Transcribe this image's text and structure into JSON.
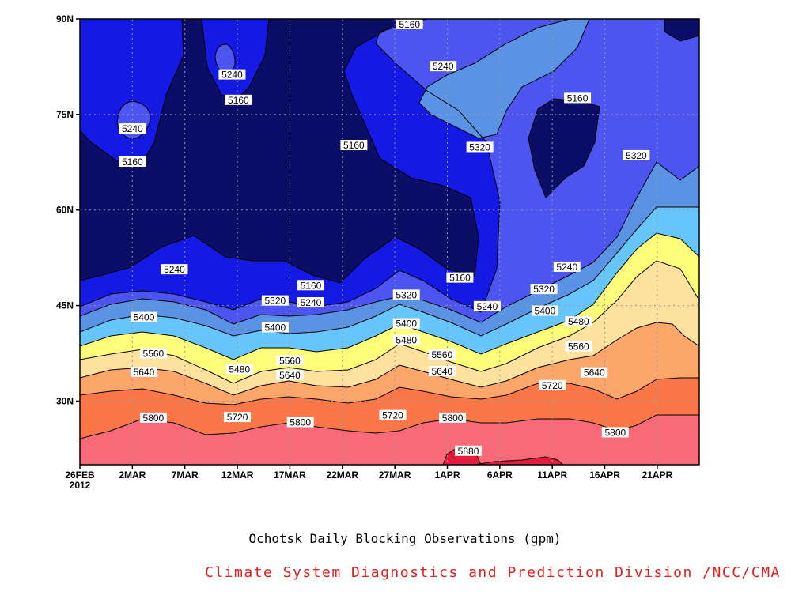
{
  "chart_data": {
    "type": "contour",
    "title": "Ochotsk Daily Blocking Observations (gpm)",
    "credit": "Climate System Diagnostics and Prediction Division /NCC/CMA",
    "xlabel": "",
    "ylabel": "",
    "x_ticks": [
      "26FEB",
      "2MAR",
      "7MAR",
      "12MAR",
      "17MAR",
      "22MAR",
      "27MAR",
      "1APR",
      "6APR",
      "11APR",
      "16APR",
      "21APR"
    ],
    "x_tick_year": "2012",
    "x_range_days": [
      0,
      59
    ],
    "y_ticks": [
      "30N",
      "45N",
      "60N",
      "75N",
      "90N"
    ],
    "y_range_deg": [
      20,
      90
    ],
    "grid": true,
    "levels": [
      5160,
      5240,
      5320,
      5400,
      5480,
      5560,
      5640,
      5720,
      5800,
      5880
    ],
    "level_colors": {
      "below_5160": "#0b0e66",
      "5160_5240": "#1419e4",
      "5240_5320": "#4c55f0",
      "5320_5400": "#5b93e4",
      "5400_5480": "#66c6fc",
      "5480_5560": "#fdfd7a",
      "5560_5640": "#fde19d",
      "5640_5720": "#fca66a",
      "5720_5800": "#fc7748",
      "5800_5880": "#f86a78",
      "above_5880": "#e41c3c"
    },
    "contour_labels": [
      {
        "value": "5160",
        "day": 31.4,
        "lat": 89.2
      },
      {
        "value": "5240",
        "day": 34.6,
        "lat": 82.6
      },
      {
        "value": "5240",
        "day": 14.5,
        "lat": 81.3
      },
      {
        "value": "5160",
        "day": 15.1,
        "lat": 77.3
      },
      {
        "value": "5240",
        "day": 5.0,
        "lat": 72.8
      },
      {
        "value": "5160",
        "day": 5.0,
        "lat": 67.6
      },
      {
        "value": "5160",
        "day": 26.1,
        "lat": 70.2
      },
      {
        "value": "5320",
        "day": 38.1,
        "lat": 69.9
      },
      {
        "value": "5160",
        "day": 47.4,
        "lat": 77.6
      },
      {
        "value": "5320",
        "day": 53.0,
        "lat": 68.6
      },
      {
        "value": "5240",
        "day": 9.0,
        "lat": 50.7
      },
      {
        "value": "5240",
        "day": 46.4,
        "lat": 51.1
      },
      {
        "value": "5160",
        "day": 22.0,
        "lat": 48.2
      },
      {
        "value": "5160",
        "day": 36.2,
        "lat": 49.4
      },
      {
        "value": "5320",
        "day": 44.2,
        "lat": 47.6
      },
      {
        "value": "5320",
        "day": 31.1,
        "lat": 46.7
      },
      {
        "value": "5320",
        "day": 18.6,
        "lat": 45.8
      },
      {
        "value": "5240",
        "day": 22.0,
        "lat": 45.5
      },
      {
        "value": "5240",
        "day": 38.8,
        "lat": 44.9
      },
      {
        "value": "5400",
        "day": 6.1,
        "lat": 43.2
      },
      {
        "value": "5400",
        "day": 44.3,
        "lat": 44.2
      },
      {
        "value": "5480",
        "day": 47.5,
        "lat": 42.5
      },
      {
        "value": "5400",
        "day": 18.6,
        "lat": 41.6
      },
      {
        "value": "5400",
        "day": 31.1,
        "lat": 42.2
      },
      {
        "value": "5480",
        "day": 31.1,
        "lat": 39.6
      },
      {
        "value": "5560",
        "day": 7.0,
        "lat": 37.5
      },
      {
        "value": "5560",
        "day": 47.5,
        "lat": 38.6
      },
      {
        "value": "5560",
        "day": 34.5,
        "lat": 37.3
      },
      {
        "value": "5560",
        "day": 20.0,
        "lat": 36.4
      },
      {
        "value": "5480",
        "day": 15.2,
        "lat": 35.0
      },
      {
        "value": "5640",
        "day": 6.1,
        "lat": 34.6
      },
      {
        "value": "5640",
        "day": 34.5,
        "lat": 34.7
      },
      {
        "value": "5640",
        "day": 20.0,
        "lat": 34.1
      },
      {
        "value": "5640",
        "day": 49.0,
        "lat": 34.5
      },
      {
        "value": "5720",
        "day": 45.0,
        "lat": 32.5
      },
      {
        "value": "5800",
        "day": 7.0,
        "lat": 27.4
      },
      {
        "value": "5720",
        "day": 15.0,
        "lat": 27.5
      },
      {
        "value": "5800",
        "day": 21.0,
        "lat": 26.7
      },
      {
        "value": "5720",
        "day": 29.8,
        "lat": 27.8
      },
      {
        "value": "5800",
        "day": 35.5,
        "lat": 27.4
      },
      {
        "value": "5800",
        "day": 51.0,
        "lat": 25.1
      },
      {
        "value": "5880",
        "day": 37.0,
        "lat": 22.2
      }
    ]
  }
}
